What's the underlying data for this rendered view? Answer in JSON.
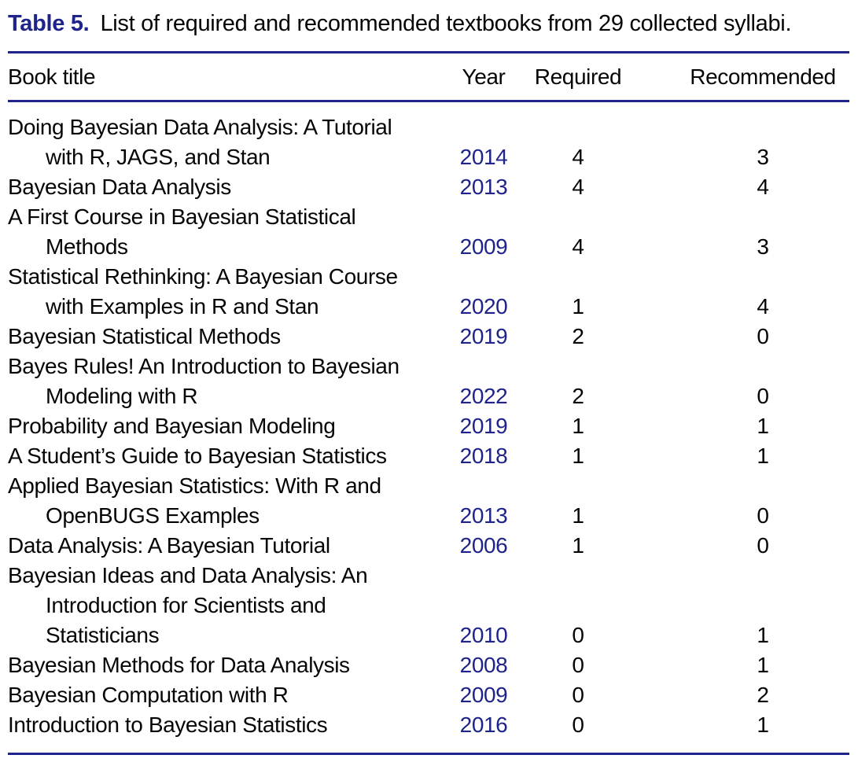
{
  "caption": {
    "label": "Table 5.",
    "text": "List of required and recommended textbooks from 29 collected syllabi."
  },
  "colors": {
    "navy": "#1e2489",
    "text": "#050505",
    "background": "#ffffff"
  },
  "table": {
    "columns": [
      "Book title",
      "Year",
      "Required",
      "Recommended"
    ],
    "rows": [
      {
        "title_lines": [
          "Doing Bayesian Data Analysis: A Tutorial",
          "with R, JAGS, and Stan"
        ],
        "year": "2014",
        "required": "4",
        "recommended": "3"
      },
      {
        "title_lines": [
          "Bayesian Data Analysis"
        ],
        "year": "2013",
        "required": "4",
        "recommended": "4"
      },
      {
        "title_lines": [
          "A First Course in Bayesian Statistical",
          "Methods"
        ],
        "year": "2009",
        "required": "4",
        "recommended": "3"
      },
      {
        "title_lines": [
          "Statistical Rethinking: A Bayesian Course",
          "with Examples in R and Stan"
        ],
        "year": "2020",
        "required": "1",
        "recommended": "4"
      },
      {
        "title_lines": [
          "Bayesian Statistical Methods"
        ],
        "year": "2019",
        "required": "2",
        "recommended": "0"
      },
      {
        "title_lines": [
          "Bayes Rules! An Introduction to Bayesian",
          "Modeling with R"
        ],
        "year": "2022",
        "required": "2",
        "recommended": "0"
      },
      {
        "title_lines": [
          "Probability and Bayesian Modeling"
        ],
        "year": "2019",
        "required": "1",
        "recommended": "1"
      },
      {
        "title_lines": [
          "A Student’s Guide to Bayesian Statistics"
        ],
        "year": "2018",
        "required": "1",
        "recommended": "1"
      },
      {
        "title_lines": [
          "Applied Bayesian Statistics: With R and",
          "OpenBUGS Examples"
        ],
        "year": "2013",
        "required": "1",
        "recommended": "0"
      },
      {
        "title_lines": [
          "Data Analysis: A Bayesian Tutorial"
        ],
        "year": "2006",
        "required": "1",
        "recommended": "0"
      },
      {
        "title_lines": [
          "Bayesian Ideas and Data Analysis: An",
          "Introduction for Scientists and",
          "Statisticians"
        ],
        "year": "2010",
        "required": "0",
        "recommended": "1"
      },
      {
        "title_lines": [
          "Bayesian Methods for Data Analysis"
        ],
        "year": "2008",
        "required": "0",
        "recommended": "1"
      },
      {
        "title_lines": [
          "Bayesian Computation with R"
        ],
        "year": "2009",
        "required": "0",
        "recommended": "2"
      },
      {
        "title_lines": [
          "Introduction to Bayesian Statistics"
        ],
        "year": "2016",
        "required": "0",
        "recommended": "1"
      }
    ]
  }
}
